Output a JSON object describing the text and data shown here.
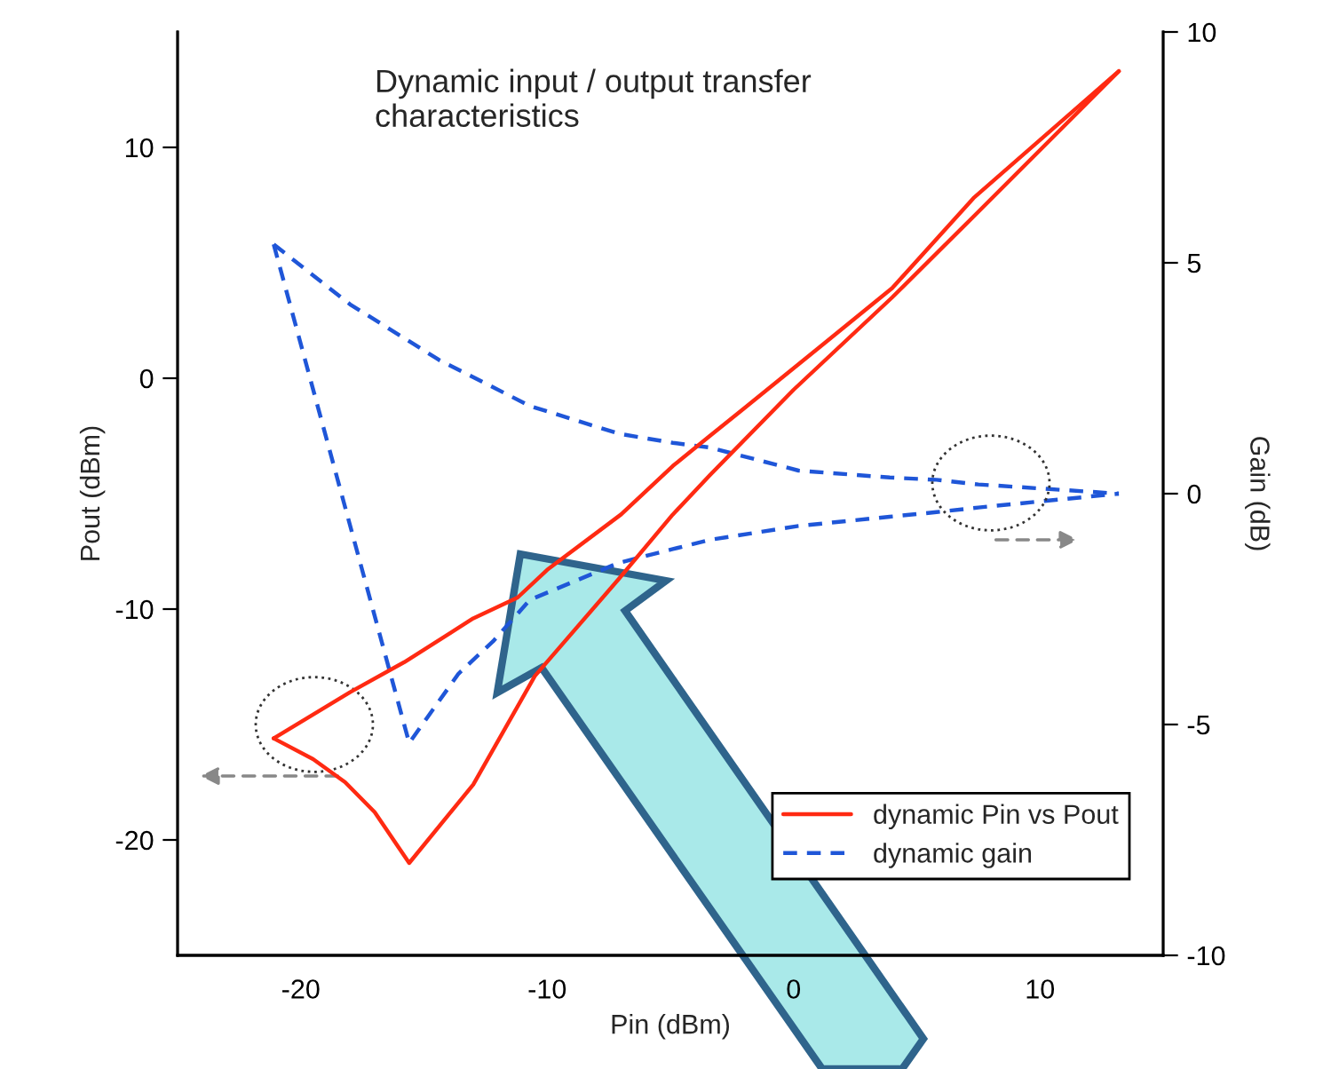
{
  "chart_data": {
    "type": "line",
    "xlabel": "Pin (dBm)",
    "ylabel": "Pout (dBm)",
    "y2label": "Gain (dB)",
    "annotations": [
      "Dynamic input / output transfer\ncharacteristics"
    ],
    "xlim": [
      -25,
      15
    ],
    "xticks": [
      -20,
      -10,
      0,
      10
    ],
    "ylim": [
      -25,
      15
    ],
    "yticks": [
      -20,
      -10,
      0,
      10
    ],
    "y2lim": [
      -10,
      10
    ],
    "y2ticks": [
      -10,
      -5,
      0,
      5,
      10
    ],
    "legend": "bottom right",
    "grid": false,
    "series": [
      {
        "name": "dynamic Pin vs Pout",
        "color": "#ff2a12",
        "line_style": "solid",
        "x": [
          -21.1,
          -18,
          -15.8,
          -13,
          -11.2,
          -10,
          -7,
          -4.9,
          -3.4,
          -2,
          1,
          4,
          7.3,
          13.2
        ],
        "values": [
          -15.6,
          -13.6,
          -12.3,
          -10.4,
          -9.5,
          -8.3,
          -5.9,
          -3.8,
          -2.5,
          -1.3,
          1.3,
          3.9,
          7.8,
          13.3
        ]
      },
      {
        "color": "#ff2a12",
        "line_style": "solid",
        "x": [
          -21.1,
          -19.5,
          -18.2,
          -17,
          -15.6,
          -13,
          -10.5,
          -7.1,
          -4.9,
          -3.4,
          0,
          4,
          7.3,
          13.2
        ],
        "values": [
          -15.6,
          -16.5,
          -17.5,
          -18.8,
          -21.0,
          -17.6,
          -12.9,
          -8.7,
          -5.9,
          -4.2,
          -0.5,
          3.5,
          7.0,
          13.3
        ]
      },
      {
        "name": "dynamic gain",
        "color": "#1f56d8",
        "line_style": "dashed",
        "axis": "y2",
        "x": [
          -21.1,
          -18,
          -14.4,
          -10.7,
          -7.1,
          -4.9,
          -3.4,
          0.2,
          3.9,
          5.8,
          7.5,
          13.2
        ],
        "values": [
          5.4,
          4.1,
          2.9,
          1.9,
          1.3,
          1.1,
          1.0,
          0.5,
          0.35,
          0.3,
          0.2,
          0.0
        ]
      },
      {
        "color": "#1f56d8",
        "line_style": "dashed",
        "axis": "y2",
        "x": [
          -21.1,
          -15.6,
          -13.6,
          -12.2,
          -10.7,
          -7.1,
          -4.9,
          -3.4,
          0.2,
          3.9,
          5.8,
          7.5,
          13.2
        ],
        "values": [
          5.4,
          -5.4,
          -3.9,
          -3.2,
          -2.3,
          -1.5,
          -1.2,
          -1.0,
          -0.7,
          -0.5,
          -0.4,
          -0.3,
          0.0
        ]
      }
    ]
  }
}
